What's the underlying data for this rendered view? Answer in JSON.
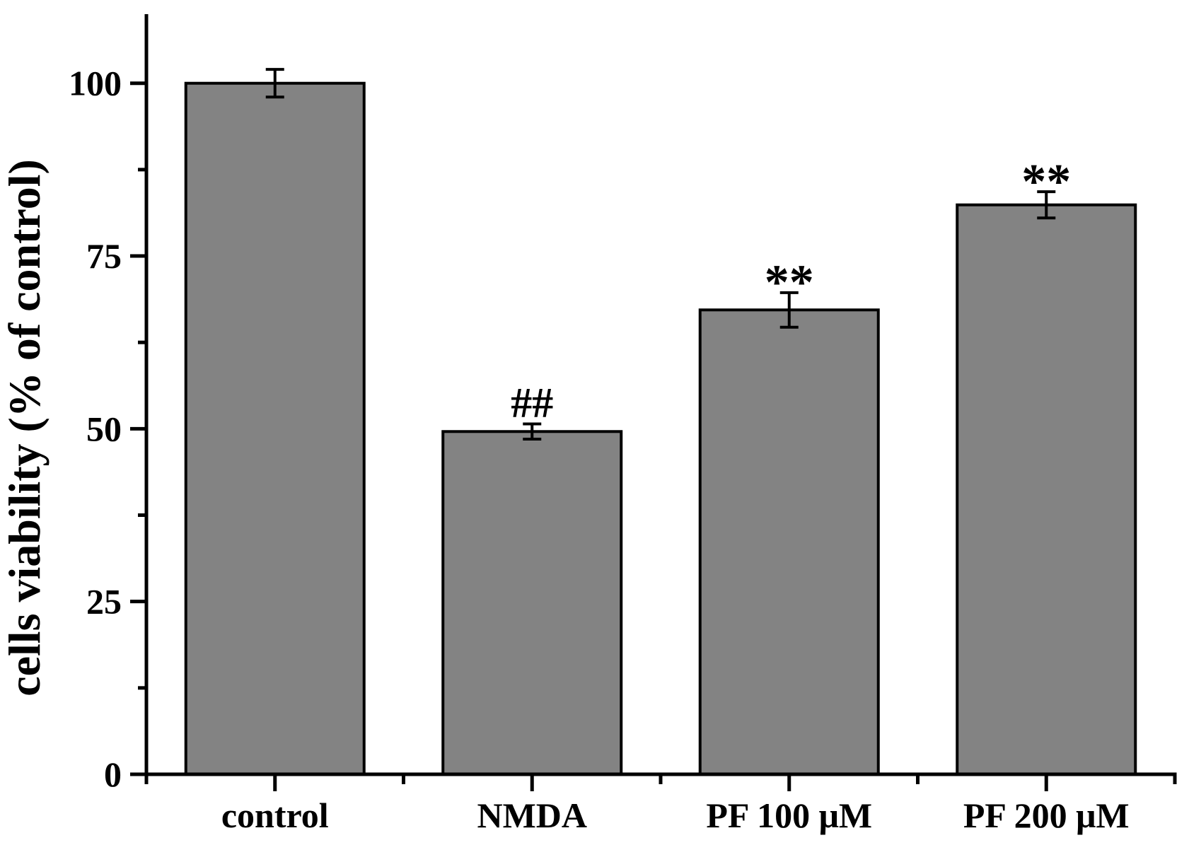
{
  "figure": {
    "background_color": "#ffffff"
  },
  "chart_data": {
    "type": "bar",
    "title": "",
    "xlabel": "",
    "ylabel": "cells viability (% of control)",
    "categories": [
      "control",
      "NMDA",
      "PF 100 μM",
      "PF 200 μM"
    ],
    "values": [
      100,
      49.6,
      67.2,
      82.4
    ],
    "errors": [
      2.0,
      1.1,
      2.5,
      1.9
    ],
    "annotations": [
      "",
      "##",
      "**",
      "**"
    ],
    "ylim": [
      0,
      110
    ],
    "yticks_major": [
      0,
      25,
      50,
      75,
      100
    ],
    "yticks_minor": [
      12.5,
      37.5,
      62.5,
      87.5
    ],
    "grid": false,
    "legend": null,
    "bar_color": "#838383",
    "bar_edge_color": "#000000",
    "axis_color": "#000000",
    "error_bar_color": "#000000",
    "annotation_color": "#000000"
  }
}
